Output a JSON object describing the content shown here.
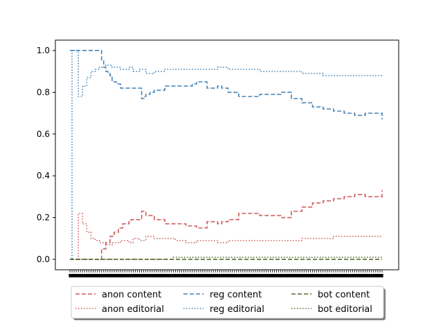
{
  "chart_data": {
    "type": "line",
    "title": "",
    "xlabel": "",
    "ylabel": "",
    "xlim": [
      0,
      150
    ],
    "ylim": [
      -0.05,
      1.05
    ],
    "yticks": [
      0.0,
      0.2,
      0.4,
      0.6,
      0.8,
      1.0
    ],
    "ytick_labels": [
      "0.0",
      "0.2",
      "0.4",
      "0.6",
      "0.8",
      "1.0"
    ],
    "x_ticks_dense": true,
    "grid": false,
    "legend_position": "below",
    "legend_columns": 3,
    "series": [
      {
        "name": "anon content",
        "color": "#cd5c5c",
        "style": "dashed",
        "x": [
          0,
          14,
          15,
          17,
          19,
          21,
          23,
          25,
          28,
          29,
          34,
          36,
          40,
          45,
          50,
          55,
          58,
          60,
          65,
          70,
          72,
          75,
          80,
          85,
          90,
          92,
          95,
          100,
          105,
          110,
          115,
          120,
          125,
          130,
          135,
          140,
          148
        ],
        "y": [
          0.0,
          0.0,
          0.05,
          0.08,
          0.11,
          0.13,
          0.15,
          0.17,
          0.18,
          0.19,
          0.23,
          0.21,
          0.19,
          0.17,
          0.17,
          0.16,
          0.16,
          0.15,
          0.18,
          0.17,
          0.18,
          0.19,
          0.22,
          0.22,
          0.21,
          0.21,
          0.21,
          0.2,
          0.23,
          0.25,
          0.27,
          0.28,
          0.29,
          0.3,
          0.31,
          0.3,
          0.33
        ]
      },
      {
        "name": "anon editorial",
        "color": "#cd5c5c",
        "style": "dotted",
        "x": [
          0,
          3,
          4,
          6,
          8,
          10,
          12,
          14,
          17,
          20,
          24,
          28,
          30,
          33,
          36,
          40,
          45,
          50,
          55,
          60,
          65,
          70,
          75,
          80,
          85,
          90,
          95,
          100,
          105,
          110,
          115,
          120,
          125,
          130,
          135,
          140,
          148
        ],
        "y": [
          0.0,
          0.0,
          0.22,
          0.17,
          0.13,
          0.1,
          0.09,
          0.08,
          0.07,
          0.08,
          0.09,
          0.08,
          0.1,
          0.09,
          0.11,
          0.1,
          0.1,
          0.09,
          0.08,
          0.09,
          0.09,
          0.08,
          0.09,
          0.09,
          0.09,
          0.09,
          0.09,
          0.09,
          0.09,
          0.1,
          0.1,
          0.1,
          0.11,
          0.11,
          0.11,
          0.11,
          0.11
        ]
      },
      {
        "name": "reg content",
        "color": "#4682b4",
        "style": "dashed",
        "x": [
          0,
          1,
          14,
          15,
          16,
          17,
          18,
          19,
          20,
          22,
          24,
          27,
          28,
          29,
          34,
          35,
          36,
          38,
          40,
          45,
          50,
          55,
          58,
          60,
          65,
          70,
          72,
          75,
          80,
          85,
          90,
          92,
          95,
          100,
          105,
          110,
          115,
          120,
          125,
          130,
          135,
          140,
          148
        ],
        "y": [
          1.0,
          1.0,
          1.0,
          0.95,
          0.92,
          0.9,
          0.89,
          0.88,
          0.85,
          0.84,
          0.82,
          0.82,
          0.82,
          0.82,
          0.77,
          0.78,
          0.79,
          0.8,
          0.81,
          0.83,
          0.83,
          0.83,
          0.84,
          0.85,
          0.82,
          0.83,
          0.82,
          0.8,
          0.78,
          0.78,
          0.79,
          0.79,
          0.79,
          0.8,
          0.77,
          0.75,
          0.73,
          0.72,
          0.71,
          0.7,
          0.69,
          0.7,
          0.67
        ]
      },
      {
        "name": "reg editorial",
        "color": "#4682b4",
        "style": "dotted",
        "x": [
          0,
          1,
          3,
          4,
          6,
          8,
          10,
          12,
          14,
          17,
          20,
          24,
          28,
          30,
          33,
          36,
          40,
          45,
          50,
          55,
          60,
          65,
          70,
          75,
          80,
          85,
          90,
          95,
          100,
          105,
          110,
          115,
          120,
          125,
          130,
          135,
          140,
          148
        ],
        "y": [
          0.0,
          1.0,
          1.0,
          0.78,
          0.83,
          0.87,
          0.9,
          0.91,
          0.92,
          0.93,
          0.92,
          0.91,
          0.92,
          0.9,
          0.91,
          0.89,
          0.9,
          0.91,
          0.91,
          0.91,
          0.91,
          0.91,
          0.92,
          0.91,
          0.91,
          0.91,
          0.9,
          0.9,
          0.9,
          0.9,
          0.89,
          0.89,
          0.88,
          0.88,
          0.88,
          0.88,
          0.88,
          0.88
        ]
      },
      {
        "name": "bot content",
        "color": "#556b2f",
        "style": "dashed",
        "x": [
          0,
          148
        ],
        "y": [
          0.0,
          0.0
        ]
      },
      {
        "name": "bot editorial",
        "color": "#556b2f",
        "style": "dotted",
        "x": [
          0,
          48,
          49,
          148
        ],
        "y": [
          0.0,
          0.0,
          0.01,
          0.01
        ]
      }
    ]
  }
}
